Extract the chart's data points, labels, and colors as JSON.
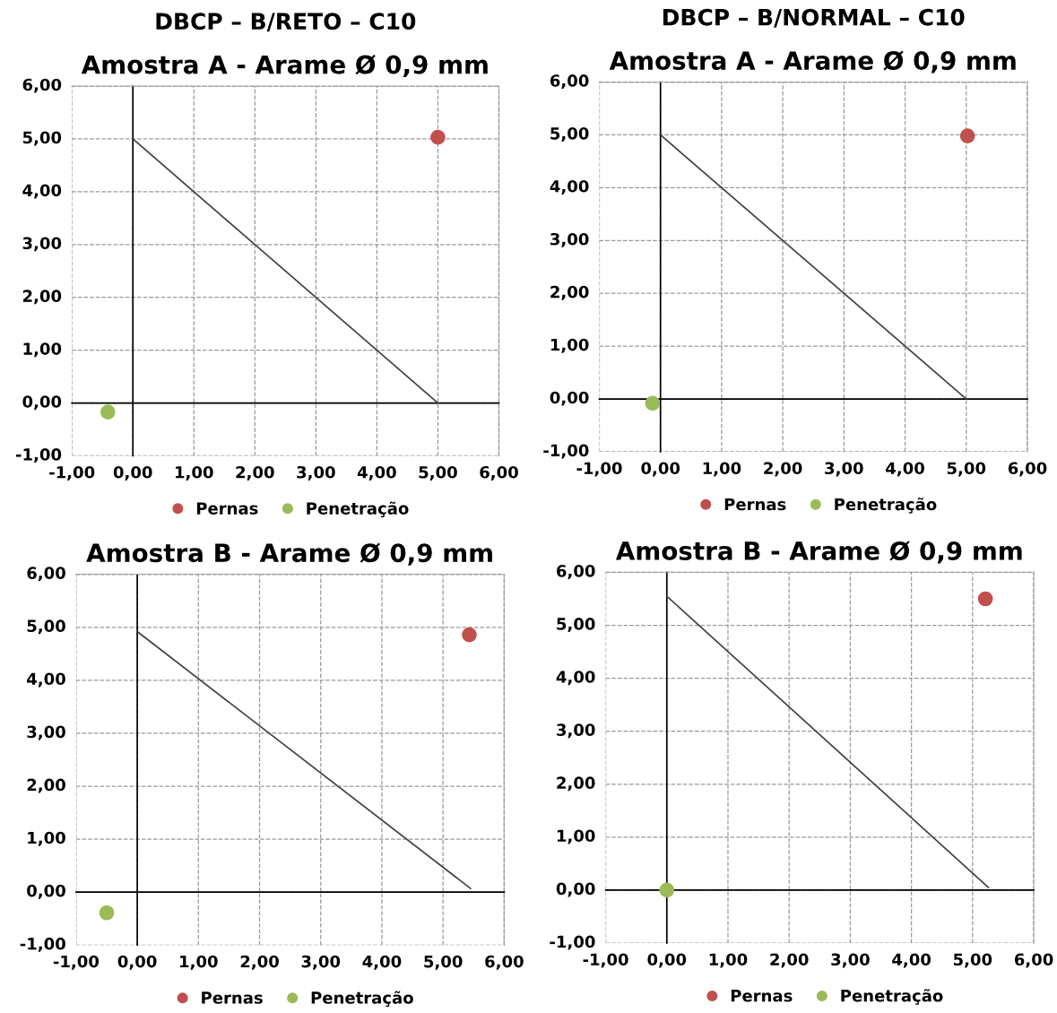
{
  "chart_data": [
    {
      "type": "scatter",
      "title": "Amostra A - Arame Ø 0,9 mm",
      "annotations": [
        "DBCP – B/RETO – C10"
      ],
      "xlim": [
        -1,
        6
      ],
      "ylim": [
        -1,
        6
      ],
      "xticks": [
        {
          "value": -1,
          "label": "-1,00"
        },
        {
          "value": 0,
          "label": "0,00"
        },
        {
          "value": 1,
          "label": "1,00"
        },
        {
          "value": 2,
          "label": "2,00"
        },
        {
          "value": 3,
          "label": "3,00"
        },
        {
          "value": 4,
          "label": "4,00"
        },
        {
          "value": 5,
          "label": "5,00"
        },
        {
          "value": 6,
          "label": "6,00"
        }
      ],
      "yticks": [
        {
          "value": -1,
          "label": "-1,00"
        },
        {
          "value": 0,
          "label": "0,00"
        },
        {
          "value": 1,
          "label": "1,00"
        },
        {
          "value": 2,
          "label": "2,00"
        },
        {
          "value": 3,
          "label": "3,00"
        },
        {
          "value": 4,
          "label": "4,00"
        },
        {
          "value": 5,
          "label": "5,00"
        },
        {
          "value": 6,
          "label": "6,00"
        }
      ],
      "grid": true,
      "legend": "bottom",
      "marker": "circle",
      "series": [
        {
          "type": "line",
          "x": [
            0,
            5
          ],
          "values": [
            5,
            0
          ],
          "color": "#404040",
          "marker": "none"
        },
        {
          "name": "Pernas",
          "x": [
            5.0
          ],
          "values": [
            5.03
          ],
          "color": "#c0504d"
        },
        {
          "name": "Penetração",
          "x": [
            -0.41
          ],
          "values": [
            -0.17
          ],
          "color": "#9bbb59"
        }
      ]
    },
    {
      "type": "scatter",
      "title": "Amostra A - Arame Ø 0,9 mm",
      "annotations": [
        "DBCP – B/NORMAL – C10"
      ],
      "xlim": [
        -1,
        6
      ],
      "ylim": [
        -1,
        6
      ],
      "xticks": [
        {
          "value": -1,
          "label": "-1,00"
        },
        {
          "value": 0,
          "label": "0,00"
        },
        {
          "value": 1,
          "label": "1,00"
        },
        {
          "value": 2,
          "label": "2,00"
        },
        {
          "value": 3,
          "label": "3,00"
        },
        {
          "value": 4,
          "label": "4,00"
        },
        {
          "value": 5,
          "label": "5,00"
        },
        {
          "value": 6,
          "label": "6,00"
        }
      ],
      "yticks": [
        {
          "value": -1,
          "label": "-1,00"
        },
        {
          "value": 0,
          "label": "0,00"
        },
        {
          "value": 1,
          "label": "1,00"
        },
        {
          "value": 2,
          "label": "2,00"
        },
        {
          "value": 3,
          "label": "3,00"
        },
        {
          "value": 4,
          "label": "4,00"
        },
        {
          "value": 5,
          "label": "5,00"
        },
        {
          "value": 6,
          "label": "6,00"
        }
      ],
      "grid": true,
      "legend": "bottom",
      "marker": "circle",
      "series": [
        {
          "type": "line",
          "x": [
            0,
            5
          ],
          "values": [
            5,
            0
          ],
          "color": "#404040",
          "marker": "none"
        },
        {
          "name": "Pernas",
          "x": [
            5.02
          ],
          "values": [
            4.98
          ],
          "color": "#c0504d"
        },
        {
          "name": "Penetração",
          "x": [
            -0.13
          ],
          "values": [
            -0.08
          ],
          "color": "#9bbb59"
        }
      ]
    },
    {
      "type": "scatter",
      "title": "Amostra B - Arame Ø 0,9 mm",
      "xlim": [
        -1,
        6
      ],
      "ylim": [
        -1,
        6
      ],
      "xticks": [
        {
          "value": -1,
          "label": "-1,00"
        },
        {
          "value": 0,
          "label": "0,00"
        },
        {
          "value": 1,
          "label": "1,00"
        },
        {
          "value": 2,
          "label": "2,00"
        },
        {
          "value": 3,
          "label": "3,00"
        },
        {
          "value": 4,
          "label": "4,00"
        },
        {
          "value": 5,
          "label": "5,00"
        },
        {
          "value": 6,
          "label": "6,00"
        }
      ],
      "yticks": [
        {
          "value": -1,
          "label": "-1,00"
        },
        {
          "value": 0,
          "label": "0,00"
        },
        {
          "value": 1,
          "label": "1,00"
        },
        {
          "value": 2,
          "label": "2,00"
        },
        {
          "value": 3,
          "label": "3,00"
        },
        {
          "value": 4,
          "label": "4,00"
        },
        {
          "value": 5,
          "label": "5,00"
        },
        {
          "value": 6,
          "label": "6,00"
        }
      ],
      "grid": true,
      "legend": "bottom",
      "marker": "circle",
      "series": [
        {
          "type": "line",
          "x": [
            0,
            5.45
          ],
          "values": [
            4.92,
            0.07
          ],
          "color": "#404040",
          "marker": "none"
        },
        {
          "name": "Pernas",
          "x": [
            5.43
          ],
          "values": [
            4.86
          ],
          "color": "#c0504d"
        },
        {
          "name": "Penetração",
          "x": [
            -0.5
          ],
          "values": [
            -0.39
          ],
          "color": "#9bbb59"
        }
      ]
    },
    {
      "type": "scatter",
      "title": "Amostra B - Arame Ø 0,9 mm",
      "xlim": [
        -1,
        6
      ],
      "ylim": [
        -1,
        6
      ],
      "xticks": [
        {
          "value": -1,
          "label": "-1,00"
        },
        {
          "value": 0,
          "label": "0,00"
        },
        {
          "value": 1,
          "label": "1,00"
        },
        {
          "value": 2,
          "label": "2,00"
        },
        {
          "value": 3,
          "label": "3,00"
        },
        {
          "value": 4,
          "label": "4,00"
        },
        {
          "value": 5,
          "label": "5,00"
        },
        {
          "value": 6,
          "label": "6,00"
        }
      ],
      "yticks": [
        {
          "value": -1,
          "label": "-1,00"
        },
        {
          "value": 0,
          "label": "0,00"
        },
        {
          "value": 1,
          "label": "1,00"
        },
        {
          "value": 2,
          "label": "2,00"
        },
        {
          "value": 3,
          "label": "3,00"
        },
        {
          "value": 4,
          "label": "4,00"
        },
        {
          "value": 5,
          "label": "5,00"
        },
        {
          "value": 6,
          "label": "6,00"
        }
      ],
      "grid": true,
      "legend": "bottom",
      "marker": "circle",
      "series": [
        {
          "type": "line",
          "x": [
            0,
            5.26
          ],
          "values": [
            5.55,
            0.05
          ],
          "color": "#404040",
          "marker": "none"
        },
        {
          "name": "Pernas",
          "x": [
            5.21
          ],
          "values": [
            5.5
          ],
          "color": "#c0504d"
        },
        {
          "name": "Penetração",
          "x": [
            0.0
          ],
          "values": [
            0.0
          ],
          "color": "#9bbb59"
        }
      ]
    }
  ]
}
